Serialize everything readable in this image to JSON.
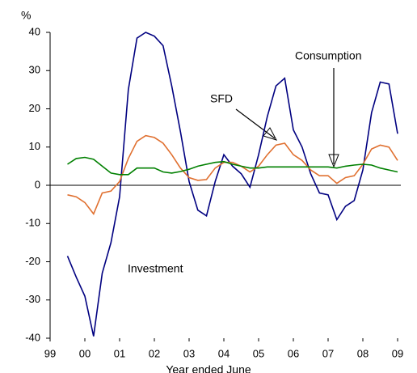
{
  "chart_data": {
    "type": "line",
    "ylabel": "%",
    "xlabel": "Year ended June",
    "x": [
      1999.5,
      1999.75,
      2000,
      2000.25,
      2000.5,
      2000.75,
      2001,
      2001.25,
      2001.5,
      2001.75,
      2002,
      2002.25,
      2002.5,
      2002.75,
      2003,
      2003.25,
      2003.5,
      2003.75,
      2004,
      2004.25,
      2004.5,
      2004.75,
      2005,
      2005.25,
      2005.5,
      2005.75,
      2006,
      2006.25,
      2006.5,
      2006.75,
      2007,
      2007.25,
      2007.5,
      2007.75,
      2008,
      2008.25,
      2008.5,
      2008.75,
      2009
    ],
    "series": [
      {
        "name": "Investment",
        "color": "#000080",
        "values": [
          -18.5,
          -24,
          -29,
          -39.5,
          -23,
          -15,
          -3,
          25,
          38.5,
          40,
          39,
          36.5,
          26,
          14,
          1,
          -6.5,
          -8,
          1,
          8,
          5,
          3,
          -0.5,
          8,
          18,
          26,
          28,
          14.5,
          10,
          3,
          -2,
          -2.5,
          -9,
          -5.5,
          -4,
          4,
          19,
          27,
          26.5,
          13.5
        ]
      },
      {
        "name": "SFD",
        "color": "#e07030",
        "values": [
          -2.5,
          -3,
          -4.5,
          -7.5,
          -2,
          -1.5,
          1,
          7,
          11.5,
          13,
          12.5,
          11,
          8,
          4.5,
          2,
          1.3,
          1.5,
          4.5,
          6,
          6,
          5,
          3.5,
          5,
          8,
          10.5,
          11,
          8,
          6.5,
          4,
          2.5,
          2.5,
          0.5,
          2,
          2.5,
          5.5,
          9.5,
          10.5,
          10,
          6.5
        ]
      },
      {
        "name": "Consumption",
        "color": "#008000",
        "values": [
          5.5,
          7,
          7.3,
          6.8,
          5,
          3.2,
          2.8,
          2.8,
          4.5,
          4.5,
          4.5,
          3.5,
          3.2,
          3.6,
          4.2,
          5,
          5.5,
          6,
          6.2,
          5.5,
          5,
          4.5,
          4.5,
          4.8,
          4.8,
          4.8,
          4.8,
          4.8,
          4.8,
          4.8,
          4.8,
          4.5,
          5,
          5.3,
          5.5,
          5.3,
          4.5,
          4,
          3.5
        ]
      }
    ],
    "xlim": [
      1999,
      2009
    ],
    "xticks": [
      {
        "value": 1999,
        "label": "99"
      },
      {
        "value": 2000,
        "label": "00"
      },
      {
        "value": 2001,
        "label": "01"
      },
      {
        "value": 2002,
        "label": "02"
      },
      {
        "value": 2003,
        "label": "03"
      },
      {
        "value": 2004,
        "label": "04"
      },
      {
        "value": 2005,
        "label": "05"
      },
      {
        "value": 2006,
        "label": "06"
      },
      {
        "value": 2007,
        "label": "07"
      },
      {
        "value": 2008,
        "label": "08"
      },
      {
        "value": 2009,
        "label": "09"
      }
    ],
    "ylim": [
      -40,
      40
    ],
    "yticks": [
      -40,
      -30,
      -20,
      -10,
      0,
      10,
      20,
      30,
      40
    ],
    "annotations": [
      "Consumption",
      "SFD",
      "Investment"
    ]
  }
}
